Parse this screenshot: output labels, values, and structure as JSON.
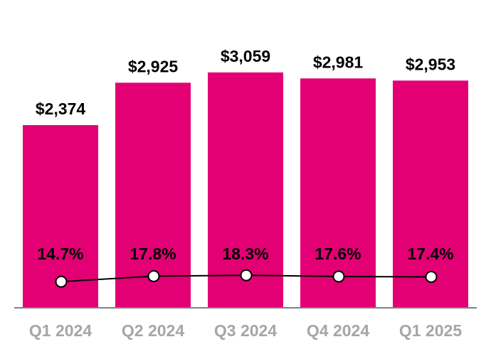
{
  "chart_data": {
    "type": "bar",
    "categories": [
      "Q1 2024",
      "Q2 2024",
      "Q3 2024",
      "Q4 2024",
      "Q1 2025"
    ],
    "series": [
      {
        "type": "bar",
        "values": [
          2374,
          2925,
          3059,
          2981,
          2953
        ],
        "labels": [
          "$2,374",
          "$2,925",
          "$3,059",
          "$2,981",
          "$2,953"
        ]
      },
      {
        "type": "line",
        "values": [
          14.7,
          17.8,
          18.3,
          17.6,
          17.4
        ],
        "labels": [
          "14.7%",
          "17.8%",
          "18.3%",
          "17.6%",
          "17.4%"
        ]
      }
    ],
    "ylim": [
      0,
      4000
    ],
    "y2lim": [
      0,
      173
    ],
    "grid": false,
    "colors": {
      "bar": "#E20074",
      "line": "#000000",
      "marker_fill": "#FFFFFF",
      "axis": "#808080",
      "tick_label": "#A6A6A6",
      "data_label": "#000000"
    }
  }
}
